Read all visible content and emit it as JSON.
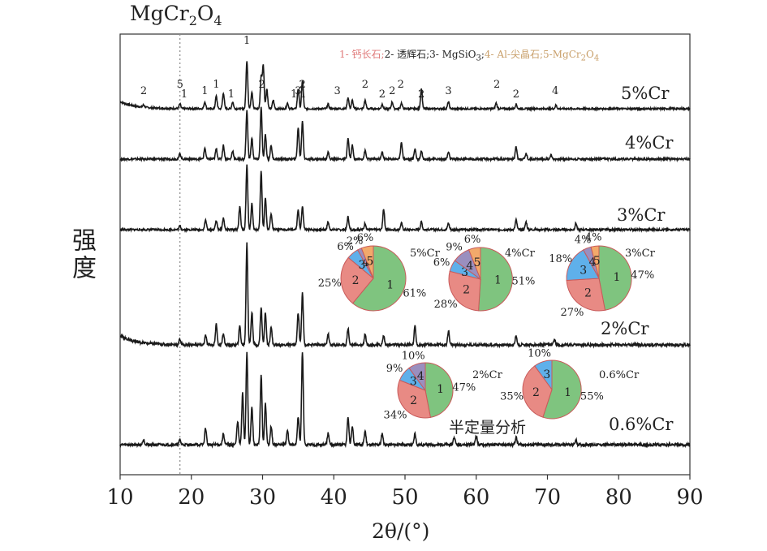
{
  "figure": {
    "title_main": "MgCr",
    "title_sub1": "2",
    "title_o": "O",
    "title_sub2": "4",
    "ylabel": "强度",
    "xlabel": "2θ/(°)",
    "annotation": "半定量分析",
    "phase_note": {
      "p1": "1- 钙长石;",
      "p2": "2- 透辉石;",
      "p3": "3- MgSiO",
      "p3sub": "3",
      "p3end": ";",
      "p4": "4- Al-尖晶石;",
      "p5": "5-MgCr",
      "p5sub1": "2",
      "p5o": "O",
      "p5sub2": "4"
    }
  },
  "chart_data": {
    "type": "line",
    "xlim": [
      10,
      90
    ],
    "x_ticks": [
      10,
      20,
      30,
      40,
      50,
      60,
      70,
      80,
      90
    ],
    "reference_line_x": 18.4,
    "series": [
      {
        "name": "5%Cr",
        "baseline_offset": 4,
        "peaks": [
          [
            13.3,
            0.04
          ],
          [
            18.4,
            0.08
          ],
          [
            21.9,
            0.12
          ],
          [
            23.5,
            0.22
          ],
          [
            24.5,
            0.28
          ],
          [
            25.8,
            0.12
          ],
          [
            27.8,
            0.85
          ],
          [
            28.5,
            0.3
          ],
          [
            29.8,
            0.55
          ],
          [
            30.1,
            0.75
          ],
          [
            30.6,
            0.35
          ],
          [
            31.5,
            0.15
          ],
          [
            33.5,
            0.1
          ],
          [
            35.0,
            0.35
          ],
          [
            35.6,
            0.5
          ],
          [
            39.2,
            0.08
          ],
          [
            42.0,
            0.2
          ],
          [
            42.6,
            0.15
          ],
          [
            44.4,
            0.15
          ],
          [
            46.8,
            0.08
          ],
          [
            48.2,
            0.12
          ],
          [
            49.5,
            0.1
          ],
          [
            52.3,
            0.35
          ],
          [
            56.1,
            0.12
          ],
          [
            62.8,
            0.1
          ],
          [
            65.6,
            0.08
          ],
          [
            71.2,
            0.06
          ]
        ],
        "drop_start": 0.25,
        "peak_labels": [
          [
            13.3,
            "2"
          ],
          [
            18.4,
            "5"
          ],
          [
            19.0,
            "1"
          ],
          [
            21.9,
            "1"
          ],
          [
            23.5,
            "1"
          ],
          [
            25.6,
            "1"
          ],
          [
            27.8,
            "1"
          ],
          [
            29.9,
            "2"
          ],
          [
            34.4,
            "1"
          ],
          [
            35.0,
            "3"
          ],
          [
            35.6,
            "2"
          ],
          [
            35.7,
            "1"
          ],
          [
            40.5,
            "3"
          ],
          [
            44.4,
            "2"
          ],
          [
            46.8,
            "2"
          ],
          [
            48.2,
            "2"
          ],
          [
            49.4,
            "2"
          ],
          [
            52.3,
            "2"
          ],
          [
            56.1,
            "3"
          ],
          [
            62.9,
            "2"
          ],
          [
            65.6,
            "2"
          ],
          [
            71.1,
            "4"
          ]
        ]
      },
      {
        "name": "4%Cr",
        "baseline_offset": 3,
        "peaks": [
          [
            18.4,
            0.08
          ],
          [
            21.9,
            0.16
          ],
          [
            23.5,
            0.15
          ],
          [
            24.5,
            0.2
          ],
          [
            25.8,
            0.12
          ],
          [
            27.8,
            0.7
          ],
          [
            28.5,
            0.3
          ],
          [
            29.8,
            0.75
          ],
          [
            30.4,
            0.35
          ],
          [
            31.2,
            0.2
          ],
          [
            35.0,
            0.45
          ],
          [
            35.6,
            0.55
          ],
          [
            39.2,
            0.1
          ],
          [
            42.0,
            0.3
          ],
          [
            42.6,
            0.2
          ],
          [
            44.4,
            0.12
          ],
          [
            46.8,
            0.1
          ],
          [
            49.5,
            0.25
          ],
          [
            51.4,
            0.15
          ],
          [
            52.3,
            0.12
          ],
          [
            56.1,
            0.1
          ],
          [
            65.6,
            0.18
          ],
          [
            67.0,
            0.08
          ],
          [
            70.5,
            0.06
          ]
        ],
        "drop_start": 0
      },
      {
        "name": "3%Cr",
        "baseline_offset": 2,
        "peaks": [
          [
            18.4,
            0.06
          ],
          [
            22.0,
            0.15
          ],
          [
            23.5,
            0.14
          ],
          [
            24.5,
            0.18
          ],
          [
            26.8,
            0.35
          ],
          [
            27.8,
            1.0
          ],
          [
            28.5,
            0.4
          ],
          [
            29.8,
            0.9
          ],
          [
            30.4,
            0.5
          ],
          [
            31.2,
            0.25
          ],
          [
            35.0,
            0.3
          ],
          [
            35.6,
            0.35
          ],
          [
            39.2,
            0.12
          ],
          [
            42.0,
            0.2
          ],
          [
            44.4,
            0.1
          ],
          [
            47.0,
            0.32
          ],
          [
            49.5,
            0.1
          ],
          [
            52.3,
            0.12
          ],
          [
            56.1,
            0.1
          ],
          [
            65.6,
            0.15
          ],
          [
            67.0,
            0.12
          ],
          [
            74.0,
            0.1
          ]
        ],
        "drop_start": 0
      },
      {
        "name": "2%Cr",
        "baseline_offset": 1,
        "peaks": [
          [
            18.4,
            0.06
          ],
          [
            22.0,
            0.1
          ],
          [
            23.5,
            0.22
          ],
          [
            24.5,
            0.12
          ],
          [
            26.8,
            0.2
          ],
          [
            27.8,
            1.1
          ],
          [
            28.5,
            0.35
          ],
          [
            29.8,
            0.4
          ],
          [
            30.4,
            0.35
          ],
          [
            31.2,
            0.2
          ],
          [
            35.0,
            0.35
          ],
          [
            35.6,
            0.55
          ],
          [
            39.2,
            0.12
          ],
          [
            42.0,
            0.18
          ],
          [
            44.4,
            0.12
          ],
          [
            47.0,
            0.1
          ],
          [
            51.4,
            0.2
          ],
          [
            56.1,
            0.15
          ],
          [
            65.6,
            0.1
          ],
          [
            71.0,
            0.06
          ]
        ],
        "drop_start": 0.2
      },
      {
        "name": "0.6%Cr",
        "baseline_offset": 0,
        "peaks": [
          [
            13.3,
            0.06
          ],
          [
            18.4,
            0.05
          ],
          [
            22.0,
            0.18
          ],
          [
            24.5,
            0.12
          ],
          [
            26.5,
            0.25
          ],
          [
            27.2,
            0.55
          ],
          [
            27.8,
            1.0
          ],
          [
            28.5,
            0.4
          ],
          [
            29.8,
            0.75
          ],
          [
            30.4,
            0.45
          ],
          [
            31.2,
            0.2
          ],
          [
            33.5,
            0.15
          ],
          [
            35.0,
            0.3
          ],
          [
            35.6,
            1.0
          ],
          [
            39.2,
            0.12
          ],
          [
            42.0,
            0.3
          ],
          [
            42.6,
            0.2
          ],
          [
            44.4,
            0.15
          ],
          [
            46.8,
            0.12
          ],
          [
            51.4,
            0.12
          ],
          [
            56.9,
            0.08
          ],
          [
            60.0,
            0.1
          ],
          [
            65.6,
            0.08
          ],
          [
            74.0,
            0.05
          ]
        ],
        "drop_start": 0
      }
    ],
    "pies": [
      {
        "name": "5%Cr",
        "slices": [
          {
            "phase": "1",
            "value": 61
          },
          {
            "phase": "2",
            "value": 25
          },
          {
            "phase": "3",
            "value": 6
          },
          {
            "phase": "4",
            "value": 2
          },
          {
            "phase": "5",
            "value": 6
          }
        ],
        "labels": [
          "61%",
          "25%",
          "6%",
          "2%",
          "6%"
        ]
      },
      {
        "name": "4%Cr",
        "slices": [
          {
            "phase": "1",
            "value": 51
          },
          {
            "phase": "2",
            "value": 28
          },
          {
            "phase": "3",
            "value": 6
          },
          {
            "phase": "4",
            "value": 9
          },
          {
            "phase": "5",
            "value": 6
          }
        ],
        "labels": [
          "51%",
          "28%",
          "6%",
          "9%",
          "6%"
        ]
      },
      {
        "name": "3%Cr",
        "slices": [
          {
            "phase": "1",
            "value": 47
          },
          {
            "phase": "2",
            "value": 27
          },
          {
            "phase": "3",
            "value": 18
          },
          {
            "phase": "4",
            "value": 4
          },
          {
            "phase": "5",
            "value": 4
          }
        ],
        "labels": [
          "47%",
          "27%",
          "18%",
          "4%",
          "4%"
        ]
      },
      {
        "name": "2%Cr",
        "slices": [
          {
            "phase": "1",
            "value": 47
          },
          {
            "phase": "2",
            "value": 34
          },
          {
            "phase": "3",
            "value": 9
          },
          {
            "phase": "4",
            "value": 10
          }
        ],
        "labels": [
          "47%",
          "34%",
          "9%",
          "10%"
        ]
      },
      {
        "name": "0.6%Cr",
        "slices": [
          {
            "phase": "1",
            "value": 55
          },
          {
            "phase": "2",
            "value": 35
          },
          {
            "phase": "3",
            "value": 10
          }
        ],
        "labels": [
          "55%",
          "35%",
          "10%"
        ]
      }
    ],
    "phase_colors": {
      "1": "#7fc47f",
      "2": "#e88a84",
      "3": "#5fb0ea",
      "4": "#9a8fbf",
      "5": "#f2a96b"
    }
  }
}
